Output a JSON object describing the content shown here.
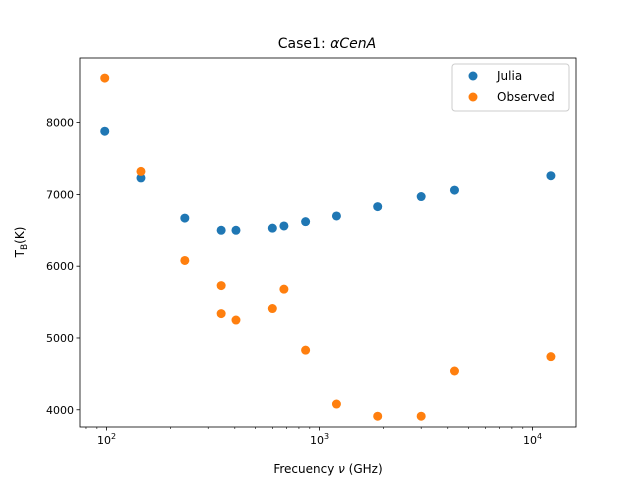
{
  "chart_data": {
    "type": "scatter",
    "title": {
      "prefix": "Case1: ",
      "math": "αCenA"
    },
    "xlabel": {
      "prefix": "Frecuency ",
      "math": "ν",
      "suffix": " (GHz)"
    },
    "ylabel": {
      "main": "T",
      "sub": "B",
      "suffix": "(K)"
    },
    "x_scale": "log",
    "xlim": [
      75,
      16000
    ],
    "ylim": [
      3760,
      8900
    ],
    "x_ticks": [
      {
        "value": 100,
        "base": "10",
        "exp": "2"
      },
      {
        "value": 1000,
        "base": "10",
        "exp": "3"
      },
      {
        "value": 10000,
        "base": "10",
        "exp": "4"
      }
    ],
    "y_ticks": [
      {
        "value": 4000,
        "label": "4000"
      },
      {
        "value": 5000,
        "label": "5000"
      },
      {
        "value": 6000,
        "label": "6000"
      },
      {
        "value": 7000,
        "label": "7000"
      },
      {
        "value": 8000,
        "label": "8000"
      }
    ],
    "grid": false,
    "legend_position": "top-right",
    "series": [
      {
        "name": "Julia",
        "color": "#1f77b4",
        "points": [
          {
            "x": 98,
            "y": 7880
          },
          {
            "x": 145,
            "y": 7230
          },
          {
            "x": 233,
            "y": 6670
          },
          {
            "x": 345,
            "y": 6500
          },
          {
            "x": 405,
            "y": 6500
          },
          {
            "x": 600,
            "y": 6530
          },
          {
            "x": 680,
            "y": 6560
          },
          {
            "x": 860,
            "y": 6620
          },
          {
            "x": 1200,
            "y": 6700
          },
          {
            "x": 1875,
            "y": 6830
          },
          {
            "x": 3000,
            "y": 6970
          },
          {
            "x": 4300,
            "y": 7060
          },
          {
            "x": 12200,
            "y": 7260
          }
        ]
      },
      {
        "name": "Observed",
        "color": "#ff7f0e",
        "points": [
          {
            "x": 98,
            "y": 8620
          },
          {
            "x": 145,
            "y": 7320
          },
          {
            "x": 233,
            "y": 6080
          },
          {
            "x": 345,
            "y": 5730
          },
          {
            "x": 345,
            "y": 5340
          },
          {
            "x": 405,
            "y": 5250
          },
          {
            "x": 600,
            "y": 5410
          },
          {
            "x": 680,
            "y": 5680
          },
          {
            "x": 860,
            "y": 4830
          },
          {
            "x": 1200,
            "y": 4080
          },
          {
            "x": 1875,
            "y": 3910
          },
          {
            "x": 3000,
            "y": 3910
          },
          {
            "x": 4300,
            "y": 4540
          },
          {
            "x": 12200,
            "y": 4740
          }
        ]
      }
    ]
  }
}
